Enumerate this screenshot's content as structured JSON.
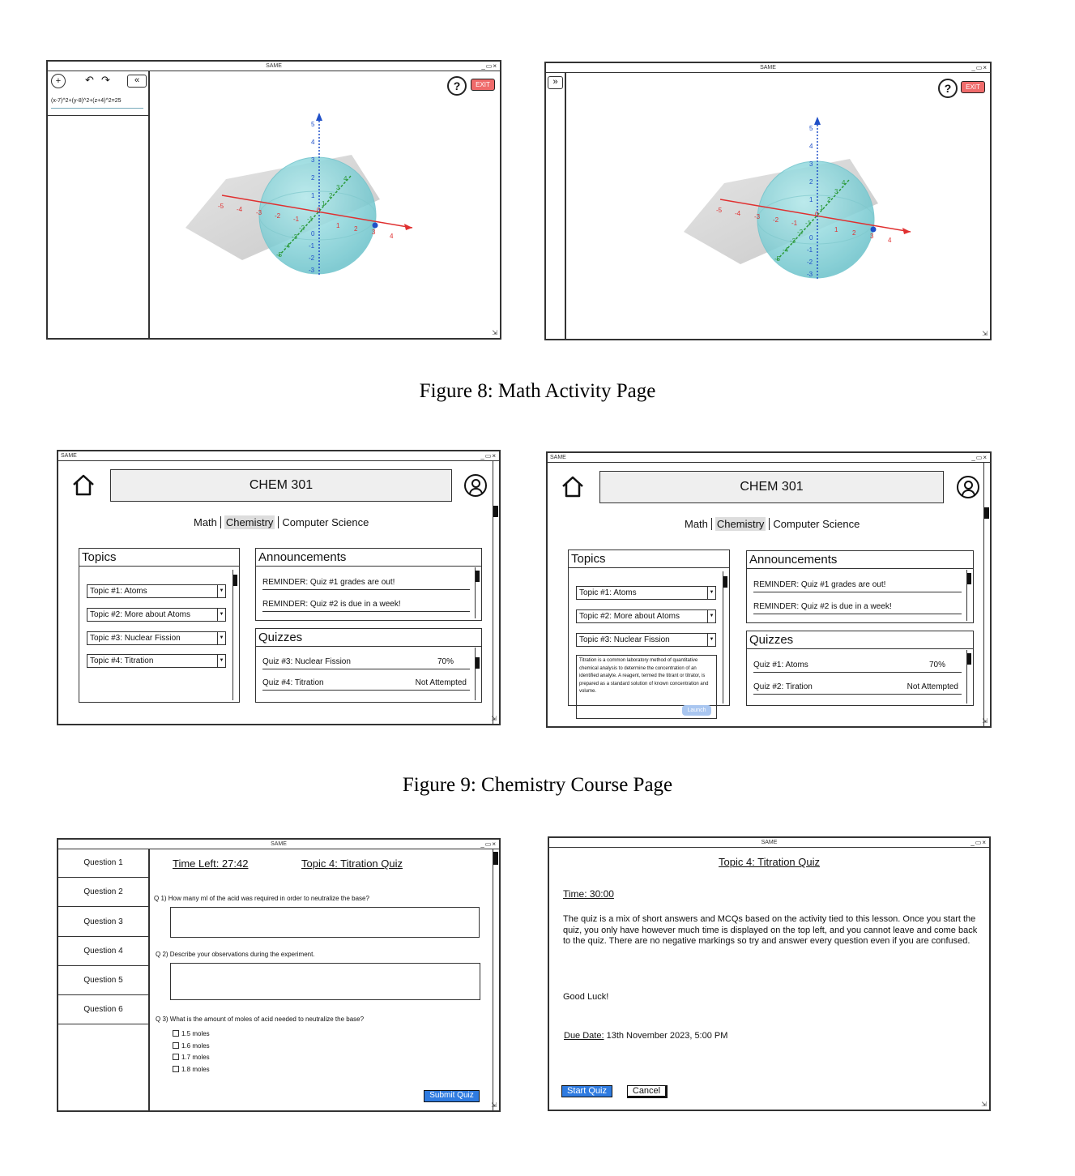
{
  "window_title": "SAME",
  "window_controls": "_▭×",
  "figures": [
    {
      "caption": "Figure 8: Math Activity Page"
    },
    {
      "caption": "Figure 9: Chemistry Course Page"
    }
  ],
  "math": {
    "equation": "(x-7)^2+(y-8)^2+(z+4)^2=25",
    "exit_label": "EXIT",
    "help_glyph": "?",
    "collapse_glyph": "«",
    "expand_glyph": "»",
    "axis_x_ticks": [
      "-5",
      "-4",
      "-3",
      "-2",
      "-1",
      "0",
      "1",
      "2",
      "3",
      "4"
    ],
    "axis_z_ticks": [
      "5",
      "4",
      "3",
      "2",
      "1",
      "0",
      "-1",
      "-2",
      "-3"
    ],
    "axis_y_ticks": [
      "4",
      "3",
      "2",
      "1",
      "-1",
      "-2",
      "-3",
      "-4",
      "-5"
    ],
    "colors": {
      "sphere": "#8fd3d8",
      "x_axis": "#e03030",
      "y_axis": "#2c9a3a",
      "z_axis": "#2050c8",
      "exit": "#ef6b6b"
    }
  },
  "chem": {
    "course_title": "CHEM 301",
    "tabs": [
      "Math",
      "Chemistry",
      "Computer Science"
    ],
    "active_tab": "Chemistry",
    "topics_heading": "Topics",
    "topics": [
      "Topic #1: Atoms",
      "Topic #2: More about Atoms",
      "Topic #3: Nuclear Fission",
      "Topic #4: Titration"
    ],
    "announcements_heading": "Announcements",
    "announcements": [
      "REMINDER: Quiz #1 grades are out!",
      "REMINDER: Quiz #2 is due in a week!"
    ],
    "quizzes_heading": "Quizzes",
    "quizzes_left": [
      {
        "name": "Quiz #3: Nuclear Fission",
        "status": "70%"
      },
      {
        "name": "Quiz #4: Titration",
        "status": "Not Attempted"
      }
    ],
    "quizzes_right": [
      {
        "name": "Quiz #1: Atoms",
        "status": "70%"
      },
      {
        "name": "Quiz #2: Tiration",
        "status": "Not Attempted"
      }
    ],
    "topic_description": "Titration is a common laboratory method of quantitative chemical analysis to determine the concentration of an identified analyte. A reagent, termed the titrant or titrator, is prepared as a standard solution of known concentration and volume.",
    "launch_label": "Launch"
  },
  "quiz": {
    "questions_nav": [
      "Question 1",
      "Question 2",
      "Question 3",
      "Question 4",
      "Question 5",
      "Question 6"
    ],
    "time_left": "Time Left: 27:42",
    "quiz_title": "Topic 4: Titration Quiz",
    "q1": "Q 1)  How many ml of the acid was required in order to neutralize the base?",
    "q2": "Q 2) Describe your observations during the experiment.",
    "q3": "Q 3) What is the amount of moles of acid needed to neutralize the base?",
    "options": [
      "1.5 moles",
      "1.6 moles",
      "1.7 moles",
      "1.8 moles"
    ],
    "submit_label": "Submit Quiz"
  },
  "quiz_intro": {
    "title": "Topic 4: Titration Quiz",
    "time": "Time: 30:00",
    "description": "The  quiz is a mix of short answers and MCQs based on the activity tied to this lesson. Once you start the quiz, you only have however much time is displayed on the top left, and you cannot leave and come back to the quiz. There are no negative markings so try and answer every question even if you are confused.",
    "good_luck": "Good Luck!",
    "due_label": "Due Date:",
    "due_value": "13th November 2023, 5:00 PM",
    "start_label": "Start Quiz",
    "cancel_label": "Cancel"
  }
}
